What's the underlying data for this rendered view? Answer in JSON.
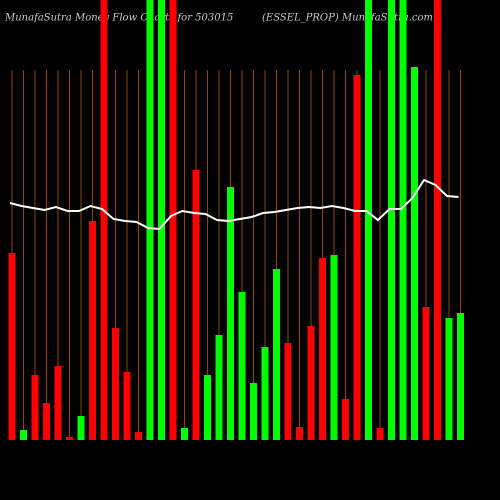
{
  "chart_data": {
    "type": "bar",
    "title": "MunafaSutra  Money Flow  Charts for 503015",
    "subtitle": "(ESSEL_PROP) MunafaSutra.com",
    "ylim": [
      0,
      440
    ],
    "grid": true,
    "grid_color": "#8a4a00",
    "up_color": "#00ff00",
    "down_color": "#ff0000",
    "line_color": "#ffffff",
    "series": [
      {
        "name": "money-flow",
        "values": [
          187,
          10,
          65,
          37,
          74,
          3,
          24,
          219,
          440,
          112,
          68,
          8,
          440,
          440,
          440,
          12,
          270,
          65,
          105,
          253,
          148,
          57,
          93,
          171,
          97,
          13,
          114,
          182,
          185,
          41,
          365,
          440,
          12,
          440,
          440,
          373,
          133,
          440,
          122,
          127
        ],
        "directions": [
          "down",
          "up",
          "down",
          "down",
          "down",
          "down",
          "up",
          "down",
          "down",
          "down",
          "down",
          "down",
          "up",
          "up",
          "down",
          "up",
          "down",
          "up",
          "up",
          "up",
          "up",
          "up",
          "up",
          "up",
          "down",
          "down",
          "down",
          "down",
          "up",
          "down",
          "down",
          "up",
          "down",
          "up",
          "up",
          "up",
          "down",
          "down",
          "up",
          "up"
        ]
      },
      {
        "name": "price",
        "values": [
          237,
          234,
          232,
          230,
          233,
          229,
          229,
          234,
          231,
          221,
          219,
          218,
          212,
          211,
          224,
          229,
          227,
          226,
          220,
          219,
          221,
          223,
          227,
          228,
          230,
          232,
          233,
          232,
          234,
          232,
          229,
          229,
          220,
          231,
          231,
          242,
          260,
          255,
          244,
          243
        ]
      }
    ]
  }
}
